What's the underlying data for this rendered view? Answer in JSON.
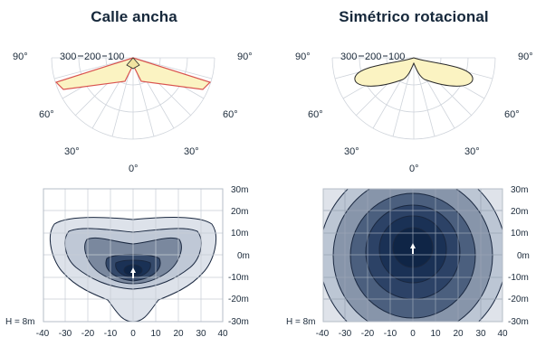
{
  "left": {
    "title": "Calle ancha",
    "polar": {
      "angle_labels": [
        "90°",
        "60°",
        "30°",
        "0°",
        "30°",
        "60°",
        "90°"
      ],
      "radial_labels": [
        "300",
        "200",
        "100"
      ]
    },
    "isolux": {
      "height_label": "H = 8m",
      "x_ticks": [
        "-40",
        "-30",
        "-20",
        "-10",
        "0",
        "10",
        "20",
        "30",
        "40"
      ]
    }
  },
  "right": {
    "title": "Simétrico rotacional",
    "polar": {
      "angle_labels": [
        "90°",
        "60°",
        "30°",
        "0°",
        "30°",
        "60°",
        "90°"
      ],
      "radial_labels": [
        "300",
        "200",
        "100"
      ]
    },
    "isolux": {
      "height_label": "H = 8m",
      "x_ticks": [
        "-40",
        "-30",
        "-20",
        "-10",
        "0",
        "10",
        "20",
        "30",
        "40"
      ]
    }
  },
  "y_axis_labels": [
    "30m",
    "20m",
    "10m",
    "0m",
    "-10m",
    "-20m",
    "-30m"
  ],
  "colors": {
    "curve_fill": "#fbf3c2",
    "curve_stroke_left": "#d9534f",
    "curve_stroke_right": "#2a2a2a",
    "grid": "#c9ced6",
    "contour_dark": "#0f2a4a",
    "background_light": "#dfe3ea"
  }
}
